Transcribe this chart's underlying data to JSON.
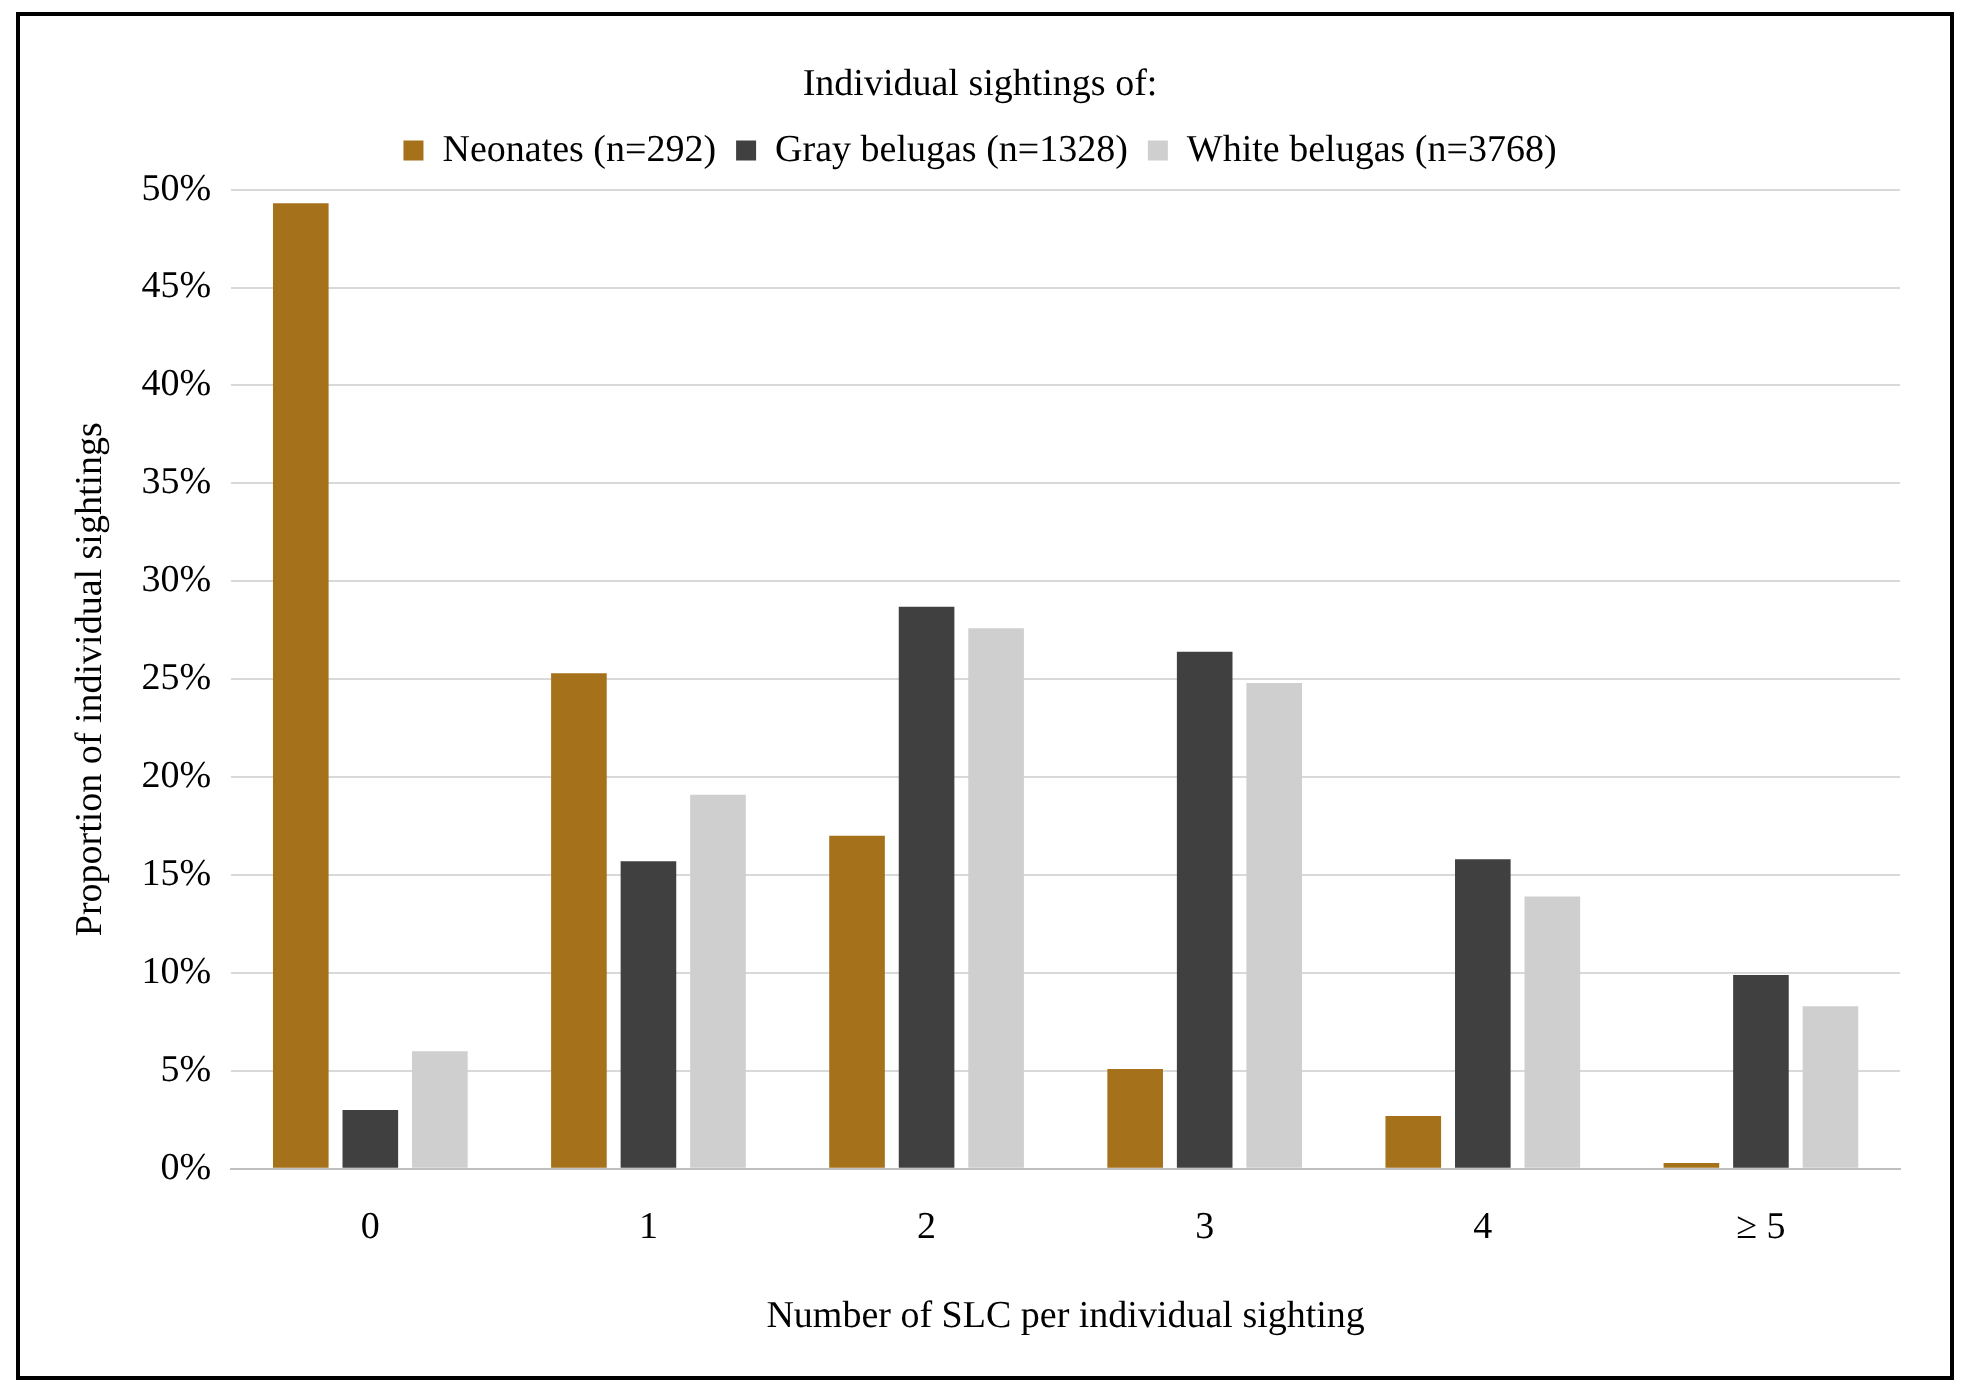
{
  "chart_data": {
    "type": "bar",
    "xlabel": "Number of SLC per individual sighting",
    "ylabel": "Proportion of individual sightings",
    "legend_title": "Individual sightings of:",
    "categories": [
      "0",
      "1",
      "2",
      "3",
      "4",
      "≥ 5"
    ],
    "series": [
      {
        "name": "Neonates (n=292)",
        "color": "#a5711b",
        "values": [
          49.3,
          25.3,
          17.0,
          5.1,
          2.7,
          0.3
        ]
      },
      {
        "name": "Gray belugas (n=1328)",
        "color": "#404040",
        "values": [
          3.0,
          15.7,
          28.7,
          26.4,
          15.8,
          9.9
        ]
      },
      {
        "name": "White belugas (n=3768)",
        "color": "#cfcfcf",
        "values": [
          6.0,
          19.1,
          27.6,
          24.8,
          13.9,
          8.3
        ]
      }
    ],
    "ylim": [
      0,
      50
    ],
    "yticks": [
      {
        "value": 0,
        "label": "0%"
      },
      {
        "value": 5,
        "label": "5%"
      },
      {
        "value": 10,
        "label": "10%"
      },
      {
        "value": 15,
        "label": "15%"
      },
      {
        "value": 20,
        "label": "20%"
      },
      {
        "value": 25,
        "label": "25%"
      },
      {
        "value": 30,
        "label": "30%"
      },
      {
        "value": 35,
        "label": "35%"
      },
      {
        "value": 40,
        "label": "40%"
      },
      {
        "value": 45,
        "label": "45%"
      },
      {
        "value": 50,
        "label": "50%"
      }
    ],
    "grid": "y",
    "legend": "top"
  }
}
